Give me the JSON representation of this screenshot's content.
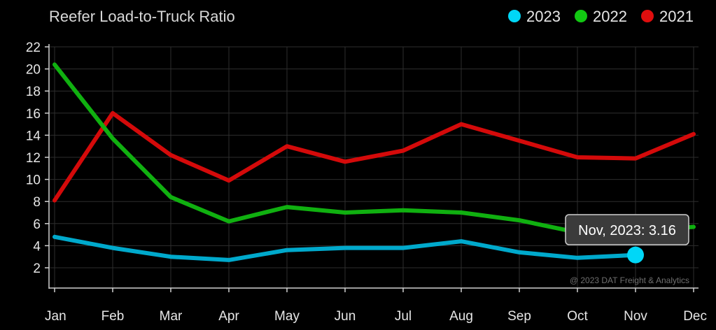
{
  "chart_data": {
    "type": "line",
    "title": "Reefer Load-to-Truck Ratio",
    "categories": [
      "Jan",
      "Feb",
      "Mar",
      "Apr",
      "May",
      "Jun",
      "Jul",
      "Aug",
      "Sep",
      "Oct",
      "Nov",
      "Dec"
    ],
    "series": [
      {
        "name": "2021",
        "color": "#d40a0a",
        "values": [
          8.1,
          16.0,
          12.2,
          9.9,
          13.0,
          11.6,
          12.6,
          15.0,
          13.5,
          12.0,
          11.9,
          14.1
        ]
      },
      {
        "name": "2022",
        "color": "#10b010",
        "values": [
          20.4,
          13.7,
          8.4,
          6.2,
          7.5,
          7.0,
          7.2,
          7.0,
          6.3,
          5.2,
          5.3,
          5.7
        ]
      },
      {
        "name": "2023",
        "color": "#00a9cc",
        "values": [
          4.8,
          3.8,
          3.0,
          2.7,
          3.6,
          3.8,
          3.8,
          4.4,
          3.4,
          2.9,
          3.16,
          null
        ]
      }
    ],
    "yticks": [
      2,
      4,
      6,
      8,
      10,
      12,
      14,
      16,
      18,
      20,
      22
    ],
    "ylim": [
      0,
      22
    ],
    "grid": true,
    "legend_position": "top-right",
    "legend": [
      {
        "name": "2023",
        "color": "#00d7f7"
      },
      {
        "name": "2022",
        "color": "#12c812"
      },
      {
        "name": "2021",
        "color": "#e00e0e"
      }
    ],
    "tooltip": {
      "text": "Nov, 2023: 3.16",
      "series": "2023",
      "category": "Nov",
      "value": 3.16,
      "marker_color": "#00d7f7"
    },
    "credit": "@ 2023 DAT Freight & Analytics"
  }
}
